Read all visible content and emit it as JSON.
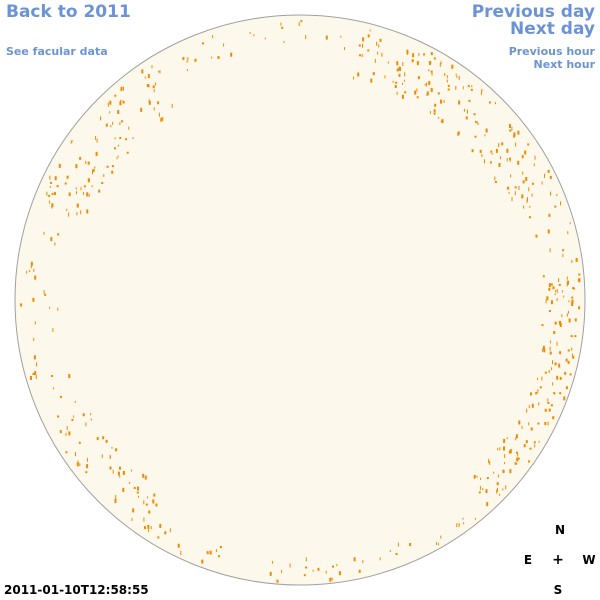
{
  "nav": {
    "back_label": "Back to 2011",
    "facular_label": "See facular data",
    "prev_day_label": "Previous day",
    "next_day_label": "Next day",
    "prev_hour_label": "Previous hour",
    "next_hour_label": "Next hour"
  },
  "compass": {
    "north": "N",
    "south": "S",
    "east": "E",
    "west": "W",
    "center": "+"
  },
  "timestamp": "2011-01-10T12:58:55",
  "colors": {
    "link": "#6b93d6",
    "disk_fill": "#fdf8ec",
    "disk_outline": "#a0a0a0",
    "facula": "#f08a00"
  }
}
